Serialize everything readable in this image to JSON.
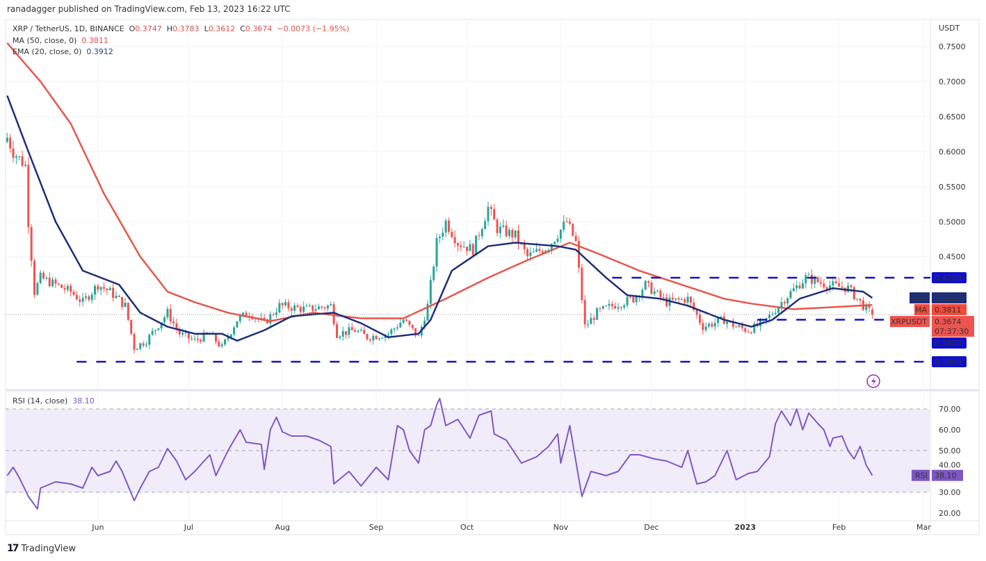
{
  "header": {
    "published": "ranadagger published on TradingView.com, Feb 13, 2023 16:22 UTC"
  },
  "legend": {
    "symbol": "XRP / TetherUS, 1D, BINANCE",
    "o_label": "O",
    "o": "0.3747",
    "h_label": "H",
    "h": "0.3783",
    "l_label": "L",
    "l": "0.3612",
    "c_label": "C",
    "c": "0.3674",
    "change": "−0.0073 (−1.95%)",
    "ma": "MA (50, close, 0)",
    "ma_value": "0.3811",
    "ema": "EMA (20, close, 0)",
    "ema_value": "0.3912",
    "rsi": "RSI (14, close)",
    "rsi_value": "38.10"
  },
  "brand": {
    "name": "TradingView"
  },
  "colors": {
    "up": "#26a69a",
    "down": "#ef5350",
    "ma": "#e8564a",
    "ema": "#1c2e7a",
    "level": "#1010c8",
    "rsi": "#7e57c2",
    "rsi_band": "#f1ecfa"
  },
  "chart_data": [
    {
      "type": "candlestick",
      "title": "XRP / TetherUS, 1D, BINANCE",
      "x_unit": "days since 2022-05-01",
      "y_unit": "USDT",
      "ylabel": "USDT",
      "ylim": [
        0.27,
        0.77
      ],
      "yticks": [
        "0.7500",
        "0.7000",
        "0.6500",
        "0.6000",
        "0.5500",
        "0.5000",
        "0.4500"
      ],
      "ytick_values": [
        0.75,
        0.7,
        0.65,
        0.6,
        0.55,
        0.5,
        0.45
      ],
      "close_keypoints": [
        [
          1,
          0.62
        ],
        [
          3,
          0.6
        ],
        [
          7,
          0.58
        ],
        [
          8,
          0.5
        ],
        [
          10,
          0.4
        ],
        [
          12,
          0.42
        ],
        [
          17,
          0.41
        ],
        [
          22,
          0.4
        ],
        [
          26,
          0.385
        ],
        [
          31,
          0.41
        ],
        [
          35,
          0.4
        ],
        [
          40,
          0.38
        ],
        [
          43,
          0.32
        ],
        [
          47,
          0.33
        ],
        [
          54,
          0.37
        ],
        [
          58,
          0.34
        ],
        [
          63,
          0.33
        ],
        [
          68,
          0.34
        ],
        [
          72,
          0.32
        ],
        [
          77,
          0.36
        ],
        [
          81,
          0.37
        ],
        [
          86,
          0.355
        ],
        [
          91,
          0.38
        ],
        [
          100,
          0.375
        ],
        [
          108,
          0.38
        ],
        [
          110,
          0.34
        ],
        [
          116,
          0.345
        ],
        [
          120,
          0.335
        ],
        [
          127,
          0.34
        ],
        [
          132,
          0.36
        ],
        [
          137,
          0.335
        ],
        [
          140,
          0.38
        ],
        [
          143,
          0.47
        ],
        [
          146,
          0.5
        ],
        [
          150,
          0.47
        ],
        [
          155,
          0.46
        ],
        [
          160,
          0.52
        ],
        [
          163,
          0.49
        ],
        [
          169,
          0.48
        ],
        [
          173,
          0.45
        ],
        [
          180,
          0.465
        ],
        [
          186,
          0.5
        ],
        [
          189,
          0.47
        ],
        [
          192,
          0.35
        ],
        [
          196,
          0.37
        ],
        [
          201,
          0.38
        ],
        [
          208,
          0.39
        ],
        [
          212,
          0.41
        ],
        [
          219,
          0.385
        ],
        [
          226,
          0.39
        ],
        [
          231,
          0.35
        ],
        [
          238,
          0.36
        ],
        [
          242,
          0.35
        ],
        [
          246,
          0.345
        ],
        [
          251,
          0.355
        ],
        [
          258,
          0.39
        ],
        [
          265,
          0.42
        ],
        [
          272,
          0.41
        ],
        [
          279,
          0.405
        ],
        [
          284,
          0.38
        ],
        [
          287,
          0.3674
        ]
      ],
      "last_bar": {
        "open": 0.3747,
        "high": 0.3783,
        "low": 0.3612,
        "close": 0.3674
      },
      "series": [
        {
          "name": "MA (50, close, 0)",
          "points": [
            [
              1,
              0.755
            ],
            [
              12,
              0.7
            ],
            [
              22,
              0.64
            ],
            [
              33,
              0.54
            ],
            [
              45,
              0.45
            ],
            [
              54,
              0.4
            ],
            [
              63,
              0.385
            ],
            [
              74,
              0.37
            ],
            [
              88,
              0.358
            ],
            [
              102,
              0.37
            ],
            [
              118,
              0.362
            ],
            [
              132,
              0.362
            ],
            [
              146,
              0.39
            ],
            [
              160,
              0.42
            ],
            [
              173,
              0.445
            ],
            [
              187,
              0.47
            ],
            [
              196,
              0.455
            ],
            [
              210,
              0.43
            ],
            [
              224,
              0.41
            ],
            [
              238,
              0.39
            ],
            [
              247,
              0.383
            ],
            [
              261,
              0.375
            ],
            [
              274,
              0.378
            ],
            [
              287,
              0.3811
            ]
          ]
        },
        {
          "name": "EMA (20, close, 0)",
          "points": [
            [
              1,
              0.68
            ],
            [
              8,
              0.6
            ],
            [
              17,
              0.5
            ],
            [
              26,
              0.43
            ],
            [
              38,
              0.41
            ],
            [
              45,
              0.37
            ],
            [
              54,
              0.35
            ],
            [
              63,
              0.34
            ],
            [
              72,
              0.34
            ],
            [
              77,
              0.33
            ],
            [
              86,
              0.345
            ],
            [
              95,
              0.365
            ],
            [
              109,
              0.37
            ],
            [
              118,
              0.355
            ],
            [
              127,
              0.335
            ],
            [
              137,
              0.34
            ],
            [
              141,
              0.36
            ],
            [
              148,
              0.43
            ],
            [
              160,
              0.465
            ],
            [
              169,
              0.47
            ],
            [
              183,
              0.465
            ],
            [
              189,
              0.46
            ],
            [
              199,
              0.42
            ],
            [
              206,
              0.395
            ],
            [
              217,
              0.39
            ],
            [
              226,
              0.38
            ],
            [
              238,
              0.36
            ],
            [
              247,
              0.35
            ],
            [
              254,
              0.36
            ],
            [
              263,
              0.39
            ],
            [
              274,
              0.405
            ],
            [
              284,
              0.4
            ],
            [
              287,
              0.3912
            ]
          ]
        }
      ],
      "levels": [
        {
          "value": 0.42,
          "label": "0.4200",
          "from_day": 201
        },
        {
          "value": 0.36,
          "label": "0.3600",
          "from_day": 249
        },
        {
          "value": 0.3,
          "label": "0.3000",
          "from_day": 24
        }
      ],
      "price_tags": [
        {
          "name": "EMA",
          "label": "EMA",
          "value": "0.3912"
        },
        {
          "name": "MA",
          "label": "MA",
          "value": "0.3811"
        },
        {
          "name": "XRPUSDT",
          "label": "XRPUSDT",
          "value": "0.3674",
          "countdown": "07:37:30"
        }
      ],
      "xticks": [
        {
          "label": "Jun",
          "day": 31
        },
        {
          "label": "Jul",
          "day": 61
        },
        {
          "label": "Aug",
          "day": 92
        },
        {
          "label": "Sep",
          "day": 123
        },
        {
          "label": "Oct",
          "day": 153
        },
        {
          "label": "Nov",
          "day": 184
        },
        {
          "label": "Dec",
          "day": 214
        },
        {
          "label": "2023",
          "day": 245,
          "bold": true
        },
        {
          "label": "Feb",
          "day": 276
        },
        {
          "label": "Mar",
          "day": 304
        }
      ]
    },
    {
      "type": "line",
      "title": "RSI (14, close)",
      "ylim": [
        17,
        77
      ],
      "band": [
        30,
        70
      ],
      "yticks": [
        "70.00",
        "60.00",
        "50.00",
        "40.00",
        "30.00",
        "20.00"
      ],
      "ytick_values": [
        70,
        60,
        50,
        40,
        30,
        20
      ],
      "tag": {
        "label": "RSI",
        "value": "38.10"
      },
      "points": [
        [
          1,
          38
        ],
        [
          3,
          42
        ],
        [
          5,
          37
        ],
        [
          8,
          28
        ],
        [
          11,
          22
        ],
        [
          12,
          32
        ],
        [
          17,
          35
        ],
        [
          22,
          34
        ],
        [
          26,
          32
        ],
        [
          29,
          42
        ],
        [
          31,
          38
        ],
        [
          35,
          40
        ],
        [
          37,
          45
        ],
        [
          39,
          40
        ],
        [
          43,
          26
        ],
        [
          45,
          32
        ],
        [
          48,
          40
        ],
        [
          51,
          42
        ],
        [
          54,
          51
        ],
        [
          57,
          45
        ],
        [
          60,
          36
        ],
        [
          63,
          40
        ],
        [
          68,
          48
        ],
        [
          70,
          38
        ],
        [
          74,
          50
        ],
        [
          78,
          60
        ],
        [
          80,
          54
        ],
        [
          85,
          53
        ],
        [
          86,
          41
        ],
        [
          88,
          60
        ],
        [
          90,
          66
        ],
        [
          92,
          59
        ],
        [
          95,
          57
        ],
        [
          100,
          57
        ],
        [
          104,
          55
        ],
        [
          108,
          52
        ],
        [
          109,
          34
        ],
        [
          114,
          40
        ],
        [
          118,
          33
        ],
        [
          123,
          42
        ],
        [
          127,
          36
        ],
        [
          130,
          62
        ],
        [
          132,
          60
        ],
        [
          134,
          50
        ],
        [
          137,
          44
        ],
        [
          139,
          60
        ],
        [
          141,
          62
        ],
        [
          143,
          72
        ],
        [
          144,
          75
        ],
        [
          146,
          62
        ],
        [
          150,
          65
        ],
        [
          154,
          56
        ],
        [
          157,
          67
        ],
        [
          161,
          69
        ],
        [
          162,
          58
        ],
        [
          166,
          55
        ],
        [
          171,
          44
        ],
        [
          176,
          47
        ],
        [
          180,
          52
        ],
        [
          183,
          58
        ],
        [
          184,
          44
        ],
        [
          187,
          62
        ],
        [
          189,
          45
        ],
        [
          191,
          28
        ],
        [
          194,
          40
        ],
        [
          199,
          38
        ],
        [
          203,
          40
        ],
        [
          207,
          48
        ],
        [
          210,
          48
        ],
        [
          215,
          46
        ],
        [
          219,
          45
        ],
        [
          224,
          42
        ],
        [
          226,
          50
        ],
        [
          229,
          34
        ],
        [
          232,
          35
        ],
        [
          235,
          38
        ],
        [
          239,
          50
        ],
        [
          242,
          36
        ],
        [
          246,
          39
        ],
        [
          249,
          40
        ],
        [
          253,
          47
        ],
        [
          255,
          63
        ],
        [
          257,
          69
        ],
        [
          260,
          62
        ],
        [
          262,
          70
        ],
        [
          264,
          60
        ],
        [
          266,
          68
        ],
        [
          269,
          63
        ],
        [
          271,
          60
        ],
        [
          273,
          52
        ],
        [
          274,
          56
        ],
        [
          277,
          57
        ],
        [
          279,
          50
        ],
        [
          281,
          46
        ],
        [
          283,
          52
        ],
        [
          285,
          43
        ],
        [
          287,
          38.1
        ]
      ]
    }
  ]
}
